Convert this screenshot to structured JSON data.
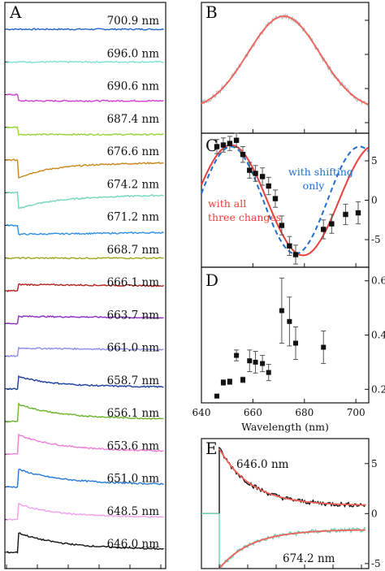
{
  "chart_data": [
    {
      "panel": "A",
      "type": "line",
      "title": "",
      "xlabel": "",
      "ylabel": "",
      "legend": "none",
      "series": [
        {
          "name": "700.9 nm",
          "color": "#2563c9",
          "shape": "flat",
          "amp": 0,
          "decay": 0
        },
        {
          "name": "696.0 nm",
          "color": "#7fe0d5",
          "shape": "flat",
          "amp": 0,
          "decay": 0
        },
        {
          "name": "690.6 nm",
          "color": "#d23fd0",
          "shape": "step",
          "amp": -0.35,
          "decay": 0
        },
        {
          "name": "687.4 nm",
          "color": "#9ad23a",
          "shape": "step",
          "amp": -0.4,
          "decay": 0
        },
        {
          "name": "676.6 nm",
          "color": "#c9861a",
          "shape": "decay",
          "amp": -1.0,
          "decay": 0.5
        },
        {
          "name": "674.2 nm",
          "color": "#74d6bd",
          "shape": "decay",
          "amp": -0.9,
          "decay": 0.6
        },
        {
          "name": "671.2 nm",
          "color": "#2f8fe0",
          "shape": "step",
          "amp": -0.5,
          "decay": 0.2
        },
        {
          "name": "668.7 nm",
          "color": "#a4a61e",
          "shape": "flat",
          "amp": 0,
          "decay": 0
        },
        {
          "name": "666.1 nm",
          "color": "#b3231f",
          "shape": "step",
          "amp": 0.35,
          "decay": 0.2
        },
        {
          "name": "663.7 nm",
          "color": "#8a2ec6",
          "shape": "step",
          "amp": 0.4,
          "decay": 0.2
        },
        {
          "name": "661.0 nm",
          "color": "#8c8cf0",
          "shape": "step",
          "amp": 0.45,
          "decay": 0.2
        },
        {
          "name": "658.7 nm",
          "color": "#1a3f9e",
          "shape": "decay",
          "amp": 0.7,
          "decay": 0.5
        },
        {
          "name": "656.1 nm",
          "color": "#6cb52a",
          "shape": "decay",
          "amp": 1.0,
          "decay": 0.55
        },
        {
          "name": "653.6 nm",
          "color": "#f07dd6",
          "shape": "decay",
          "amp": 1.1,
          "decay": 0.6
        },
        {
          "name": "651.0 nm",
          "color": "#2478d6",
          "shape": "decay",
          "amp": 1.0,
          "decay": 0.6
        },
        {
          "name": "648.5 nm",
          "color": "#f2a0f0",
          "shape": "decay",
          "amp": 0.9,
          "decay": 0.5
        },
        {
          "name": "646.0 nm",
          "color": "#111111",
          "shape": "decay",
          "amp": 1.1,
          "decay": 0.65
        }
      ]
    },
    {
      "panel": "B",
      "type": "line",
      "title": "",
      "xlabel": "",
      "ylabel": "",
      "xlim": [
        640,
        705
      ],
      "ylim": [
        0,
        1
      ],
      "series": [
        {
          "name": "data",
          "color": "#b5b5b5",
          "center": 672,
          "width": 14,
          "noise": true
        },
        {
          "name": "fit",
          "color": "#f0605a",
          "center": 672,
          "width": 14,
          "noise": false
        }
      ]
    },
    {
      "panel": "C",
      "type": "scatter",
      "title": "",
      "xlabel": "",
      "ylabel": "",
      "xlim": [
        640,
        705
      ],
      "ylim": [
        -8.5,
        8.5
      ],
      "yticks": [
        "5",
        "0",
        "-5"
      ],
      "annotations": [
        {
          "text": "with shifting",
          "color": "#1f6fd1"
        },
        {
          "text": "only",
          "color": "#1f6fd1"
        },
        {
          "text": "with all",
          "color": "#e8403b"
        },
        {
          "text": "three changes",
          "color": "#e8403b"
        }
      ],
      "points": [
        {
          "x": 646.0,
          "y": 6.8,
          "err": 0.9
        },
        {
          "x": 648.5,
          "y": 7.0,
          "err": 0.9
        },
        {
          "x": 651.0,
          "y": 7.2,
          "err": 0.9
        },
        {
          "x": 653.6,
          "y": 7.6,
          "err": 0.9
        },
        {
          "x": 656.1,
          "y": 5.8,
          "err": 1.0
        },
        {
          "x": 658.7,
          "y": 3.8,
          "err": 1.0
        },
        {
          "x": 661.0,
          "y": 3.4,
          "err": 1.0
        },
        {
          "x": 663.7,
          "y": 3.0,
          "err": 1.1
        },
        {
          "x": 666.1,
          "y": 1.8,
          "err": 1.1
        },
        {
          "x": 668.7,
          "y": 0.2,
          "err": 1.1
        },
        {
          "x": 671.2,
          "y": -3.2,
          "err": 1.2
        },
        {
          "x": 674.2,
          "y": -5.8,
          "err": 1.2
        },
        {
          "x": 676.6,
          "y": -6.9,
          "err": 1.2
        },
        {
          "x": 687.4,
          "y": -3.7,
          "err": 1.2
        },
        {
          "x": 690.6,
          "y": -3.0,
          "err": 1.2
        },
        {
          "x": 696.0,
          "y": -1.8,
          "err": 1.3
        },
        {
          "x": 700.9,
          "y": -1.6,
          "err": 1.4
        }
      ],
      "curves": [
        {
          "name": "with all three changes",
          "color": "#e8403b",
          "dash": false,
          "amp": 7.0,
          "center": 679.5,
          "period": 56
        },
        {
          "name": "with shifting only",
          "color": "#1f6fd1",
          "dash": true,
          "amp": 6.8,
          "center": 676.5,
          "period": 50
        }
      ]
    },
    {
      "panel": "D",
      "type": "scatter",
      "title": "",
      "ylabel": "",
      "xlabel": "Wavelength (nm)",
      "xlim": [
        640,
        705
      ],
      "ylim": [
        0.15,
        0.65
      ],
      "xticks": [
        640,
        660,
        680,
        700
      ],
      "yticks": [
        0.2,
        0.4,
        0.6
      ],
      "ytick_labels": [
        "0.2",
        "0.4",
        "0.6"
      ],
      "points": [
        {
          "x": 646.0,
          "y": 0.175,
          "err": 0.0
        },
        {
          "x": 648.5,
          "y": 0.225,
          "err": 0.01
        },
        {
          "x": 651.0,
          "y": 0.228,
          "err": 0.01
        },
        {
          "x": 653.6,
          "y": 0.325,
          "err": 0.02
        },
        {
          "x": 656.1,
          "y": 0.235,
          "err": 0.01
        },
        {
          "x": 658.7,
          "y": 0.305,
          "err": 0.04
        },
        {
          "x": 661.0,
          "y": 0.3,
          "err": 0.04
        },
        {
          "x": 663.7,
          "y": 0.295,
          "err": 0.03
        },
        {
          "x": 666.1,
          "y": 0.262,
          "err": 0.03
        },
        {
          "x": 671.2,
          "y": 0.49,
          "err": 0.12
        },
        {
          "x": 674.2,
          "y": 0.45,
          "err": 0.09
        },
        {
          "x": 676.6,
          "y": 0.37,
          "err": 0.06
        },
        {
          "x": 687.4,
          "y": 0.355,
          "err": 0.06
        }
      ]
    },
    {
      "panel": "E",
      "type": "line",
      "title": "",
      "xlabel": "",
      "ylabel": "",
      "ylim": [
        -5.5,
        7.5
      ],
      "yticks": [
        "5",
        "0",
        "-5"
      ],
      "series": [
        {
          "name": "646.0 nm",
          "color": "#111111",
          "fit_color": "#f0605a",
          "amp": 6.5,
          "offset": 0.8
        },
        {
          "name": "674.2 nm",
          "color": "#6dcfb5",
          "fit_color": "#f0605a",
          "amp": -5.5,
          "offset": -1.6
        }
      ]
    }
  ]
}
